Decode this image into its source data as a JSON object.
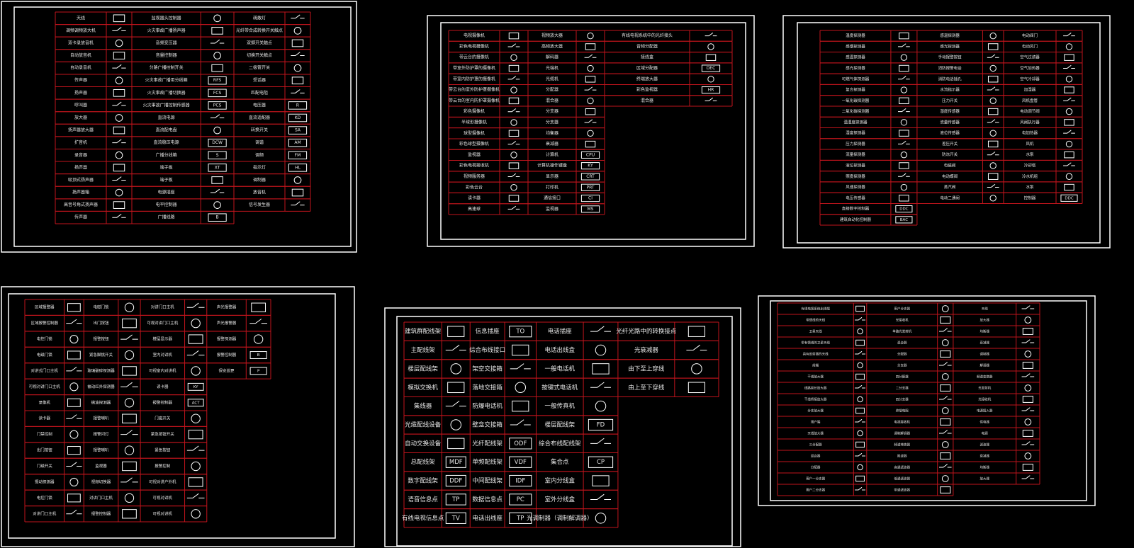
{
  "sheets": [
    {
      "rows": [
        [
          "天线",
          null,
          "监视器头控制器",
          null,
          "疏散灯",
          null
        ],
        [
          "调频调频放大机",
          null,
          "火灾事故广播扬声器",
          null,
          "光纤带合成转换开关触点",
          null
        ],
        [
          "双卡录放音机",
          null,
          "音频变压器",
          null,
          "双掷开关触点",
          null
        ],
        [
          "自动放音机",
          null,
          "音量控制器",
          null,
          "切换开关触点",
          null
        ],
        [
          "自动录音机",
          null,
          "分路广播控制开关",
          null,
          "二极管开关",
          null
        ],
        [
          "传声器",
          null,
          "火灾事故广播用分线箱",
          "RFS",
          "受话器",
          null
        ],
        [
          "扬声器",
          null,
          "火灾事故广播切换器",
          "FCS",
          "匹配电阻",
          null
        ],
        [
          "呼叫器",
          null,
          "火灾事故广播控制传感器",
          "PCS",
          "电压器",
          "R"
        ],
        [
          "放大器",
          null,
          "直流电源",
          null,
          "直流适配器",
          "KD"
        ],
        [
          "扬声器放大器",
          null,
          "直流配电盘",
          null,
          "转换开关",
          "SA"
        ],
        [
          "扩音机",
          null,
          "直流稳压电源",
          "DCW",
          "调谐",
          "AM"
        ],
        [
          "录音器",
          null,
          "广播分线箱",
          "S",
          "调频",
          "FM"
        ],
        [
          "扬声器",
          null,
          "端子板",
          "XT",
          "指示灯",
          "HL"
        ],
        [
          "吸顶式扬声器",
          null,
          "端子板",
          null,
          "调制器",
          null
        ],
        [
          "扬声器箱",
          null,
          "电源插座",
          null,
          "放音机",
          null
        ],
        [
          "高音号角式扬声器",
          null,
          "电平控制器",
          null,
          "信号发生器",
          null
        ],
        [
          "传声器",
          null,
          "广播线路",
          "B"
        ]
      ]
    },
    {
      "rows": [
        [
          "电视摄像机",
          null,
          "视频放大器",
          null,
          "有线电视系统中的光纤接头",
          null
        ],
        [
          "彩色电视摄像机",
          null,
          "高频放大器",
          null,
          "音频分配器",
          null
        ],
        [
          "带云台的摄像机",
          null,
          "解码器",
          null,
          "接线盒",
          null
        ],
        [
          "带室外防护罩的摄像机",
          null,
          "光端机",
          null,
          "区域分配器",
          "DEC"
        ],
        [
          "带室内防护罩的摄像机",
          null,
          "光缆机",
          null,
          "终端放大器",
          null
        ],
        [
          "带云台的室外防护罩摄像机",
          null,
          "分配器",
          null,
          "彩色监视器",
          "HR"
        ],
        [
          "带云台的室内防护罩摄像机",
          null,
          "混合器",
          null,
          "混合器",
          null
        ],
        [
          "彩色摄像机",
          null,
          "分支器",
          null
        ],
        [
          "半球形摄像机",
          null,
          "分支器",
          null
        ],
        [
          "球型摄像机",
          null,
          "均衡器",
          null
        ],
        [
          "彩色球型摄像机",
          null,
          "衰减器",
          null
        ],
        [
          "监视器",
          null,
          "计算机",
          "CPU"
        ],
        [
          "彩色电视接收机",
          null,
          "计算机操作键盘",
          "KY"
        ],
        [
          "视频服务器",
          null,
          "显示器",
          "CRT"
        ],
        [
          "彩色云台",
          null,
          "打印机",
          "PRT"
        ],
        [
          "读卡器",
          null,
          "通信接口",
          "CI"
        ],
        [
          "高速球",
          null,
          "监视器",
          "MS"
        ]
      ]
    },
    {
      "rows": [
        [
          "温度探测器",
          null,
          "感温探测器",
          null,
          "电动阀门",
          null
        ],
        [
          "感烟探测器",
          null,
          "感光探测器",
          null,
          "电动风门",
          null
        ],
        [
          "感温探测器",
          null,
          "手动报警按钮",
          null,
          "空气过滤器",
          null
        ],
        [
          "感光探测器",
          null,
          "消防报警电话",
          null,
          "空气加热器",
          null
        ],
        [
          "可燃气体探测器",
          null,
          "消防电话插孔",
          null,
          "空气冷却器",
          null
        ],
        [
          "复合探测器",
          null,
          "水流指示器",
          null,
          "加湿器",
          null
        ],
        [
          "一氧化碳探测器",
          null,
          "压力开关",
          null,
          "风机盘管",
          null
        ],
        [
          "二氧化碳探测器",
          null,
          "湿度传感器",
          null,
          "电动调节阀",
          null
        ],
        [
          "温湿度探测器",
          null,
          "流量传感器",
          null,
          "风阀执行器",
          null
        ],
        [
          "湿度探测器",
          null,
          "液位传感器",
          null,
          "电加热器",
          null
        ],
        [
          "压力探测器",
          null,
          "差压开关",
          null,
          "风机",
          null
        ],
        [
          "流量探测器",
          null,
          "防冻开关",
          null,
          "水泵",
          null
        ],
        [
          "液位探测器",
          null,
          "电磁阀",
          null,
          "冷却塔",
          null
        ],
        [
          "照度探测器",
          null,
          "电动蝶阀",
          null,
          "冷水机组",
          null
        ],
        [
          "风速探测器",
          null,
          "蒸汽阀",
          null,
          "水泵",
          null
        ],
        [
          "电压传感器",
          null,
          "电动二通阀",
          null,
          "控制器",
          "DDC"
        ],
        [
          "直接数字控制器",
          "DDC"
        ],
        [
          "建筑自动化控制器",
          "BAC"
        ]
      ]
    },
    {
      "rows": [
        [
          "区域报警器",
          null,
          "电磁门锁",
          null,
          "对讲门口主机",
          null,
          "声光报警器",
          null
        ],
        [
          "区域报警控制器",
          null,
          "出门按钮",
          null,
          "可视对讲门口主机",
          null,
          "声光报警器",
          null
        ],
        [
          "电控门锁",
          null,
          "报警按钮",
          null,
          "楼层显示器",
          null,
          "报警探测器",
          null
        ],
        [
          "电磁门锁",
          null,
          "紧急脚挑开关",
          null,
          "室内对讲机",
          null,
          "报警控制器",
          "B"
        ],
        [
          "对讲式门口主机",
          null,
          "玻璃破碎探测器",
          null,
          "可视室内对讲机",
          null,
          "保安巡更",
          "P"
        ],
        [
          "可视对讲门口主机",
          null,
          "被动红外探测器",
          null,
          "读卡器",
          "KY"
        ],
        [
          "录像机",
          null,
          "微波探测器",
          null,
          "报警控制器",
          "ACT"
        ],
        [
          "读卡器",
          null,
          "报警喇叭",
          null,
          "门磁开关",
          null
        ],
        [
          "门禁控制",
          null,
          "报警闪灯",
          null,
          "紧急按钮开关",
          null
        ],
        [
          "出门按钮",
          null,
          "报警喇叭",
          null,
          "紧急按钮",
          null
        ],
        [
          "门磁开关",
          null,
          "监视器",
          null,
          "报警控制",
          null
        ],
        [
          "振动探测器",
          null,
          "视频切换器",
          null,
          "可视对讲户外机",
          null
        ],
        [
          "电控门锁",
          null,
          "对讲门口主机",
          null,
          "可视对讲机",
          null
        ],
        [
          "对讲门口主机",
          null,
          "报警控制器",
          null,
          "可视对讲机",
          null
        ]
      ]
    },
    {
      "rows": [
        [
          "建筑群配线架",
          null,
          "信息插座",
          "TO",
          "电话插座",
          null,
          "光纤光路中的转换接点",
          null
        ],
        [
          "主配线架",
          null,
          "综合布线接口",
          null,
          "电话出线盒",
          null,
          "光衰减器",
          null
        ],
        [
          "楼层配线架",
          null,
          "架空交接箱",
          null,
          "一般电话机",
          null,
          "由下至上穿线",
          null
        ],
        [
          "模拟交换机",
          null,
          "落地交接箱",
          null,
          "按键式电话机",
          null,
          "由上至下穿线",
          null
        ],
        [
          "集线器",
          null,
          "防爆电话机",
          null,
          "一般传真机",
          null
        ],
        [
          "光缆配线设备",
          null,
          "壁龛交接箱",
          null,
          "楼层配线架",
          "FD"
        ],
        [
          "自动交换设备",
          null,
          "光纤配线架",
          "ODF",
          "综合布线配线架",
          null
        ],
        [
          "总配线架",
          "MDF",
          "单频配线架",
          "VDF",
          "集合点",
          "CP"
        ],
        [
          "数字配线架",
          "DDF",
          "中间配线架",
          "IDF",
          "室内分线盒",
          null
        ],
        [
          "语音信息点",
          "TP",
          "数据信息点",
          "PC",
          "室外分线盒",
          null
        ],
        [
          "有线电视信息点",
          "TV",
          "电话出线座",
          "TP",
          "光调制器（调制解调器）",
          null
        ]
      ]
    },
    {
      "rows": [
        [
          "有线电视系统出线端",
          null,
          "用户分支器",
          null,
          "天线",
          null
        ],
        [
          "带馈线的天线",
          null,
          "光接收机",
          null,
          "放大器",
          null
        ],
        [
          "卫星天线",
          null,
          "单路光发射机",
          null,
          "均衡器",
          null
        ],
        [
          "带有馈线的卫星天线",
          null,
          "混合器",
          null,
          "衰减器",
          null
        ],
        [
          "具有反射器的天线",
          null,
          "分配器",
          null,
          "调制器",
          null
        ],
        [
          "前端",
          null,
          "分支器",
          null,
          "解调器",
          null
        ],
        [
          "干线放大器",
          null,
          "四分配器",
          null,
          "频道变换器",
          null
        ],
        [
          "线路延长放大器",
          null,
          "二分支器",
          null,
          "光发射机",
          null
        ],
        [
          "干线桥接放大器",
          null,
          "四分支器",
          null,
          "光接收机",
          null
        ],
        [
          "分支放大器",
          null,
          "终端电阻",
          null,
          "电源插入器",
          null
        ],
        [
          "用户端",
          null,
          "电视接收机",
          null,
          "供电器",
          null
        ],
        [
          "天线放大器",
          null,
          "调制解调器",
          null,
          "电源",
          null
        ],
        [
          "三分配器",
          null,
          "频道转换器",
          null,
          "滤波器",
          null
        ],
        [
          "混合器",
          null,
          "陷波器",
          null,
          "衰减器",
          null
        ],
        [
          "分配器",
          null,
          "高通滤波器",
          null,
          "均衡器",
          null
        ],
        [
          "用户一分支器",
          null,
          "低通滤波器",
          null,
          "放大器",
          null
        ],
        [
          "用户二分支器",
          null,
          "带通滤波器",
          null
        ]
      ]
    }
  ]
}
